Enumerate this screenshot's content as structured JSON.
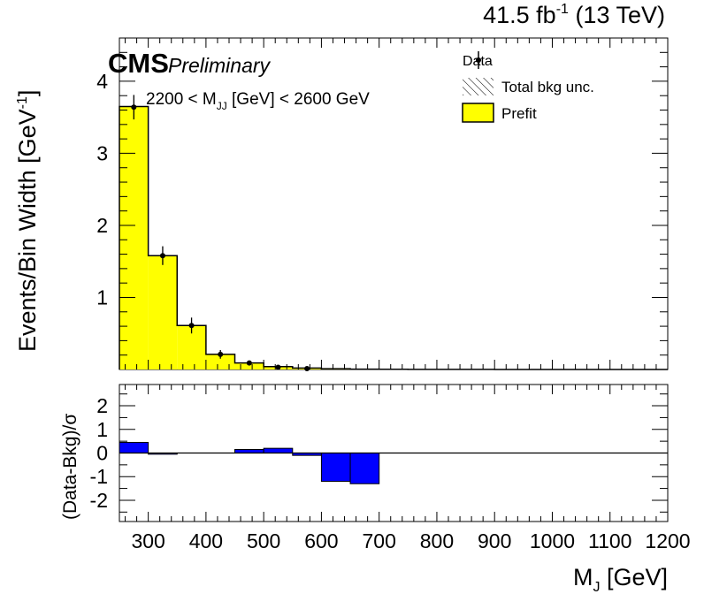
{
  "lumi": {
    "value": "41.5 fb",
    "sup": "-1",
    "energy": " (13 TeV)"
  },
  "cms": {
    "label": "CMS",
    "extra": "Preliminary"
  },
  "selection": {
    "pre": "2200 < M",
    "sub": "JJ",
    "post": " [GeV] < 2600 GeV"
  },
  "legend": [
    {
      "label": "Data",
      "style": "marker"
    },
    {
      "label": "Total bkg unc.",
      "style": "hatch"
    },
    {
      "label": "Prefit",
      "style": "fill",
      "color": "#ffff00"
    }
  ],
  "colors": {
    "prefit": "#ffff00",
    "pull": "#0000ff"
  },
  "chart_data": [
    {
      "type": "bar",
      "subtype": "histogram",
      "xlabel": {
        "main": "M",
        "sub": "J",
        "unit": " [GeV]"
      },
      "ylabel": {
        "main": "Events/Bin Width [GeV",
        "sup": "-1",
        "close": "]"
      },
      "xlim": [
        250,
        1200
      ],
      "ylim": [
        0,
        4.6
      ],
      "xticks": [
        "300",
        "400",
        "500",
        "600",
        "700",
        "800",
        "900",
        "1000",
        "1100",
        "1200"
      ],
      "yticks": [
        "1",
        "2",
        "3",
        "4"
      ],
      "bin_edges": [
        250,
        300,
        350,
        400,
        450,
        500,
        550,
        600,
        650,
        700,
        750,
        800,
        850,
        900,
        950,
        1000,
        1050,
        1100,
        1150,
        1200
      ],
      "series": [
        {
          "name": "Prefit",
          "values": [
            3.65,
            1.58,
            0.61,
            0.21,
            0.09,
            0.04,
            0.02,
            0.01,
            0.005,
            0.003,
            0.002,
            0.001,
            0.001,
            0.0,
            0.0,
            0.0,
            0.0,
            0.0,
            0.0
          ]
        },
        {
          "name": "Data",
          "points": [
            {
              "x": 275,
              "y": 3.64,
              "err": 0.17
            },
            {
              "x": 325,
              "y": 1.58,
              "err": 0.13
            },
            {
              "x": 375,
              "y": 0.61,
              "err": 0.11
            },
            {
              "x": 425,
              "y": 0.21,
              "err": 0.06
            },
            {
              "x": 475,
              "y": 0.09,
              "err": 0.03
            },
            {
              "x": 525,
              "y": 0.03,
              "err": 0.02
            },
            {
              "x": 575,
              "y": 0.0,
              "err": 0.0
            }
          ]
        }
      ]
    },
    {
      "type": "bar",
      "subtype": "pull",
      "xlim": [
        250,
        1200
      ],
      "ylim": [
        -2.9,
        2.9
      ],
      "yticks": [
        "2",
        "1",
        "0",
        "-1",
        "-2"
      ],
      "ylabel": "(Data-Bkg)/σ",
      "bin_edges": [
        250,
        300,
        350,
        400,
        450,
        500,
        550,
        600,
        650,
        700,
        750,
        800,
        850,
        900,
        950,
        1000,
        1050,
        1100,
        1150,
        1200
      ],
      "values": [
        0.45,
        -0.05,
        0.0,
        0.0,
        0.15,
        0.2,
        -0.1,
        -1.2,
        -1.3,
        0.0,
        0.0,
        0.0,
        0.0,
        0.0,
        0.0,
        0.0,
        0.0,
        0.0,
        0.0
      ]
    }
  ]
}
